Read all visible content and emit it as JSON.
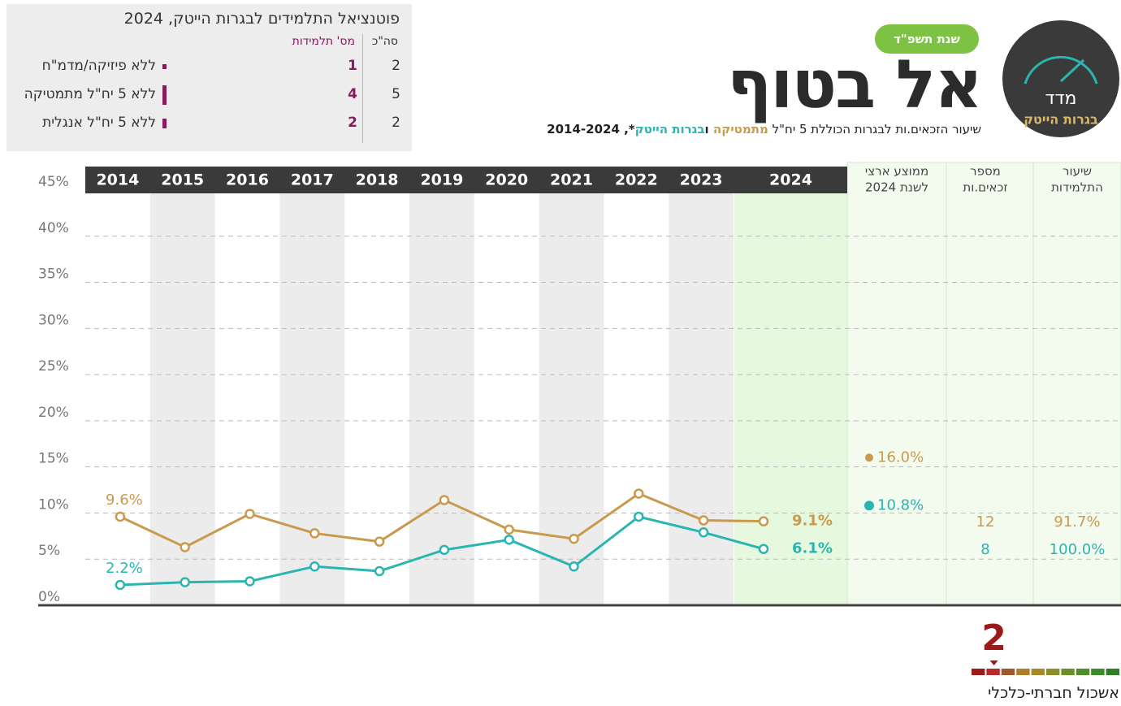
{
  "badge": "שנת תשפ\"ד",
  "logo": {
    "top": "מדד",
    "bottom": "בגרות הייטק"
  },
  "school": "אל בטוף",
  "subtitle": [
    "שיעור הזכאים.ות לבגרות הכוללת 5 יח\"ל ",
    "מתמטיקה",
    " ו",
    "בגרות הייטק",
    "*, 2014-2024"
  ],
  "side_table": {
    "title": "פוטנציאל התלמידים לבגרות הייטק, 2024",
    "headers": [
      "סה\"כ",
      "מס' תלמידות"
    ],
    "rows": [
      {
        "total": 2,
        "count": 1,
        "label": "ללא פיזיקה/מדמ\"ח"
      },
      {
        "total": 5,
        "count": 4,
        "label": "ללא 5 יח\"ל מתמטיקה"
      },
      {
        "total": 2,
        "count": 2,
        "label": "ללא 5 יח\"ל אנגלית"
      }
    ]
  },
  "chart_data": {
    "type": "line",
    "categories": [
      "2014",
      "2015",
      "2016",
      "2017",
      "2018",
      "2019",
      "2020",
      "2021",
      "2022",
      "2023",
      "2024"
    ],
    "ylim": [
      0,
      45
    ],
    "yticks": [
      {
        "value": 0,
        "label": "0%"
      },
      {
        "value": 5,
        "label": "5%"
      },
      {
        "value": 10,
        "label": "10%"
      },
      {
        "value": 15,
        "label": "15%"
      },
      {
        "value": 20,
        "label": "20%"
      },
      {
        "value": 25,
        "label": "25%"
      },
      {
        "value": 30,
        "label": "30%"
      },
      {
        "value": 35,
        "label": "35%"
      },
      {
        "value": 40,
        "label": "40%"
      },
      {
        "value": 45,
        "label": "45%"
      }
    ],
    "grid": true,
    "series": [
      {
        "name": "מתמטיקה",
        "color": "#c99a4e",
        "values": [
          9.6,
          6.3,
          9.9,
          7.8,
          6.9,
          11.4,
          8.2,
          7.2,
          12.1,
          9.2,
          9.1
        ],
        "value_labels": [
          "9.6%",
          null,
          null,
          null,
          null,
          null,
          null,
          null,
          null,
          null,
          "9.1%"
        ]
      },
      {
        "name": "בגרות הייטק",
        "color": "#2bb5b0",
        "values": [
          2.2,
          2.5,
          2.6,
          4.2,
          3.7,
          6.0,
          7.1,
          4.2,
          9.6,
          7.9,
          6.1
        ],
        "value_labels": [
          "2.2%",
          null,
          null,
          null,
          null,
          null,
          null,
          null,
          null,
          null,
          "6.1%"
        ]
      }
    ]
  },
  "columns": [
    {
      "header": [
        "ממוצע ארצי",
        "לשנת 2024"
      ],
      "values": [
        16.0,
        10.8
      ],
      "value_labels": [
        "16.0%",
        "10.8%"
      ]
    },
    {
      "header": [
        "מספר",
        "זכאים.ות"
      ],
      "values": [
        12,
        8
      ]
    },
    {
      "header": [
        "שיעור",
        "התלמידות"
      ],
      "values": [
        91.7,
        100.0
      ],
      "value_labels": [
        "91.7%",
        "100.0%"
      ]
    }
  ],
  "cluster": {
    "value": 2,
    "scale": [
      1,
      10
    ],
    "label": "אשכול חברתי-כלכלי"
  }
}
